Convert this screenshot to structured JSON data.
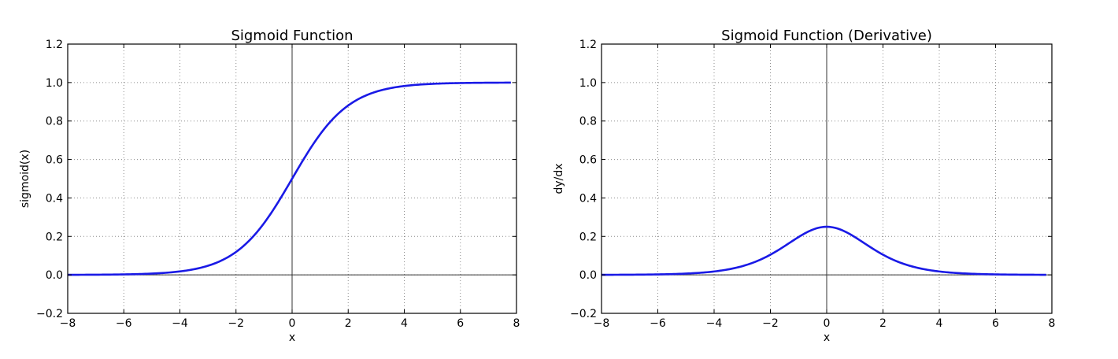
{
  "chart_data": [
    {
      "type": "line",
      "function": "sigmoid",
      "title": "Sigmoid Function",
      "xlabel": "x",
      "ylabel": "sigmoid(x)",
      "xlim": [
        -8,
        8
      ],
      "ylim": [
        -0.2,
        1.2
      ],
      "xticks": [
        -8,
        -6,
        -4,
        -2,
        0,
        2,
        4,
        6,
        8
      ],
      "xtick_labels": [
        "−8",
        "−6",
        "−4",
        "−2",
        "0",
        "2",
        "4",
        "6",
        "8"
      ],
      "yticks": [
        -0.2,
        0.0,
        0.2,
        0.4,
        0.6,
        0.8,
        1.0,
        1.2
      ],
      "ytick_labels": [
        "−0.2",
        "0.0",
        "0.2",
        "0.4",
        "0.6",
        "0.8",
        "1.0",
        "1.2"
      ],
      "grid": true,
      "line_color": "#1a1ae6",
      "x": [
        -8,
        -7,
        -6,
        -5,
        -4,
        -3,
        -2,
        -1,
        0,
        1,
        2,
        3,
        4,
        5,
        6,
        7,
        7.8
      ],
      "y": [
        0.0003,
        0.0009,
        0.0025,
        0.0067,
        0.018,
        0.0474,
        0.1192,
        0.2689,
        0.5,
        0.7311,
        0.8808,
        0.9526,
        0.982,
        0.9933,
        0.9975,
        0.9991,
        0.9996
      ]
    },
    {
      "type": "line",
      "function": "sigmoid_derivative",
      "title": "Sigmoid Function (Derivative)",
      "xlabel": "x",
      "ylabel": "dy/dx",
      "xlim": [
        -8,
        8
      ],
      "ylim": [
        -0.2,
        1.2
      ],
      "xticks": [
        -8,
        -6,
        -4,
        -2,
        0,
        2,
        4,
        6,
        8
      ],
      "xtick_labels": [
        "−8",
        "−6",
        "−4",
        "−2",
        "0",
        "2",
        "4",
        "6",
        "8"
      ],
      "yticks": [
        -0.2,
        0.0,
        0.2,
        0.4,
        0.6,
        0.8,
        1.0,
        1.2
      ],
      "ytick_labels": [
        "−0.2",
        "0.0",
        "0.2",
        "0.4",
        "0.6",
        "0.8",
        "1.0",
        "1.2"
      ],
      "grid": true,
      "line_color": "#1a1ae6",
      "x": [
        -8,
        -7,
        -6,
        -5,
        -4,
        -3,
        -2,
        -1,
        0,
        1,
        2,
        3,
        4,
        5,
        6,
        7,
        7.8
      ],
      "y": [
        0.0003,
        0.0009,
        0.0025,
        0.0066,
        0.0177,
        0.0452,
        0.105,
        0.1966,
        0.25,
        0.1966,
        0.105,
        0.0452,
        0.0177,
        0.0066,
        0.0025,
        0.0009,
        0.0004
      ]
    }
  ]
}
